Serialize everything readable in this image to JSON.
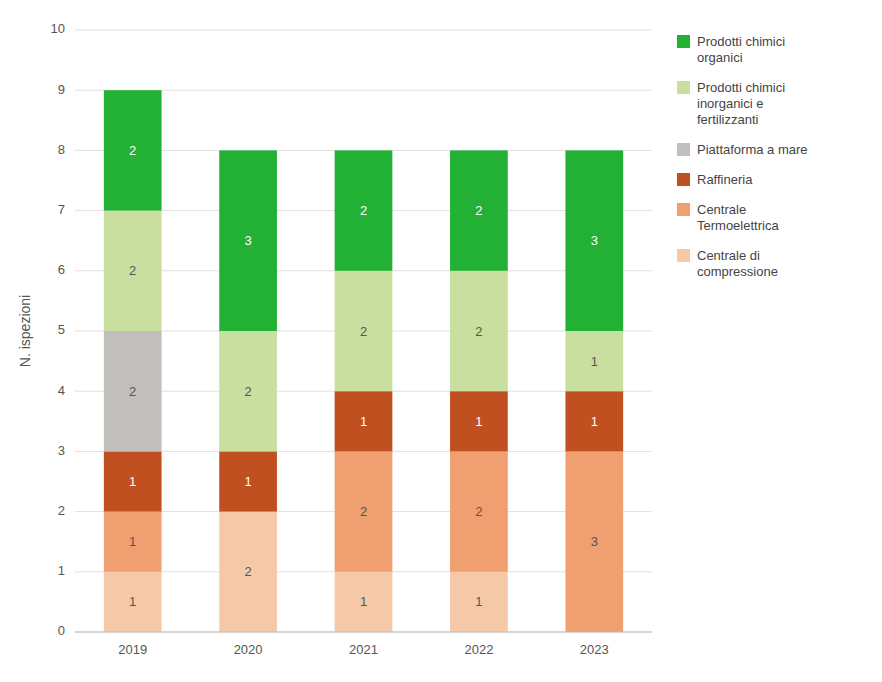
{
  "chart_data": {
    "type": "bar",
    "stacked": true,
    "categories": [
      "2019",
      "2020",
      "2021",
      "2022",
      "2023"
    ],
    "series": [
      {
        "name": "Centrale di\ncompressione",
        "color": "#f5c9a8",
        "values": [
          1,
          2,
          1,
          1,
          0
        ]
      },
      {
        "name": "Centrale\nTermoelettrica",
        "color": "#f0a070",
        "values": [
          1,
          0,
          2,
          2,
          3
        ]
      },
      {
        "name": "Raffineria",
        "color": "#c05020",
        "values": [
          1,
          1,
          1,
          1,
          1
        ]
      },
      {
        "name": "Piattaforma a mare",
        "color": "#c0bfbc",
        "values": [
          2,
          0,
          0,
          0,
          0
        ]
      },
      {
        "name": "Prodotti chimici\ninorganici e\nfertilizzanti",
        "color": "#c8dfa0",
        "values": [
          2,
          2,
          2,
          2,
          1
        ]
      },
      {
        "name": "Prodotti chimici\norganici",
        "color": "#22b035",
        "values": [
          2,
          3,
          2,
          2,
          3
        ]
      }
    ],
    "ylabel": "N. ispezioni",
    "ylim": [
      0,
      10
    ],
    "yticks": [
      0,
      1,
      2,
      3,
      4,
      5,
      6,
      7,
      8,
      9,
      10
    ],
    "grid": true,
    "legend": "right",
    "data_labels": true
  }
}
